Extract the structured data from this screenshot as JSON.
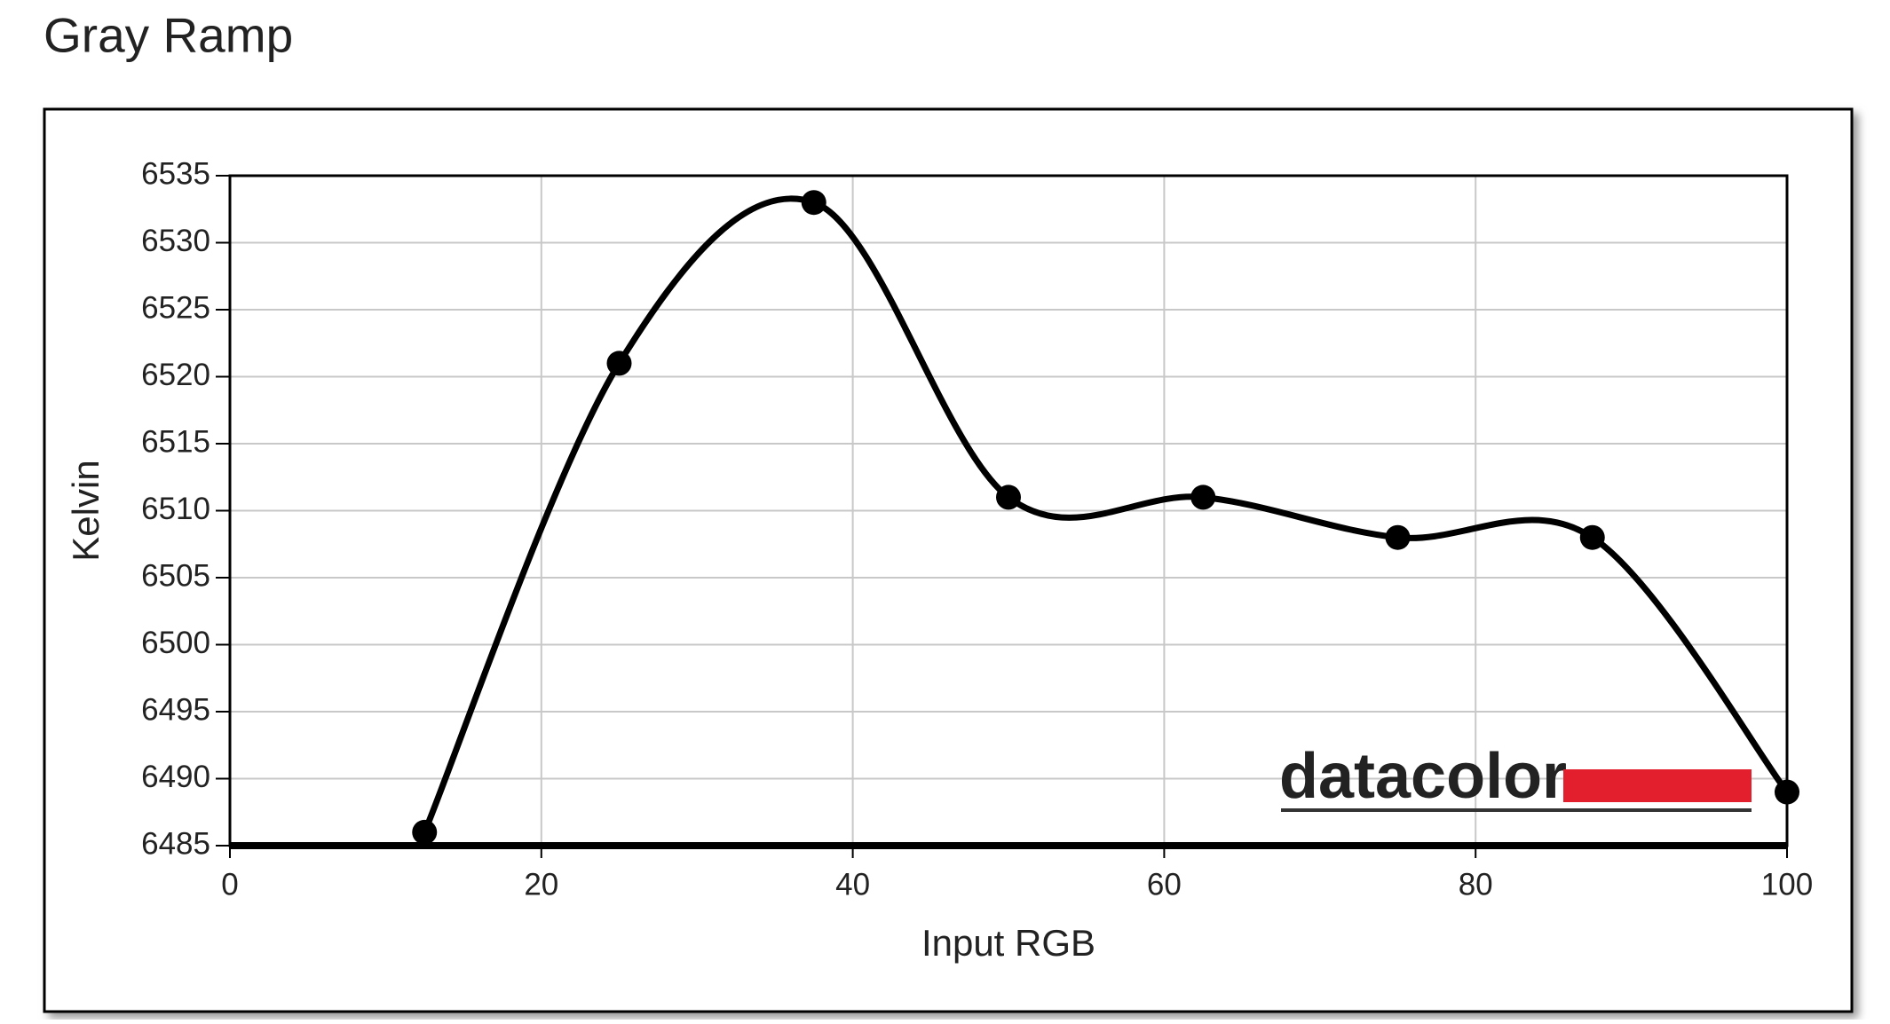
{
  "chart_data": {
    "type": "line",
    "title": "Gray Ramp",
    "xlabel": "Input RGB",
    "ylabel": "Kelvin",
    "logo": "datacolor",
    "x": [
      12.5,
      25,
      37.5,
      50,
      62.5,
      75,
      87.5,
      100
    ],
    "series": [
      {
        "color": "#000000",
        "values": [
          6486,
          6521,
          6533,
          6511,
          6511,
          6508,
          6508,
          6489
        ]
      }
    ],
    "xlim": [
      0,
      100
    ],
    "xticks": [
      0,
      20,
      40,
      60,
      80,
      100
    ],
    "ylim": [
      6485,
      6535
    ],
    "yticks": [
      6485,
      6490,
      6495,
      6500,
      6505,
      6510,
      6515,
      6520,
      6525,
      6530,
      6535
    ],
    "grid": true,
    "smooth": true
  }
}
